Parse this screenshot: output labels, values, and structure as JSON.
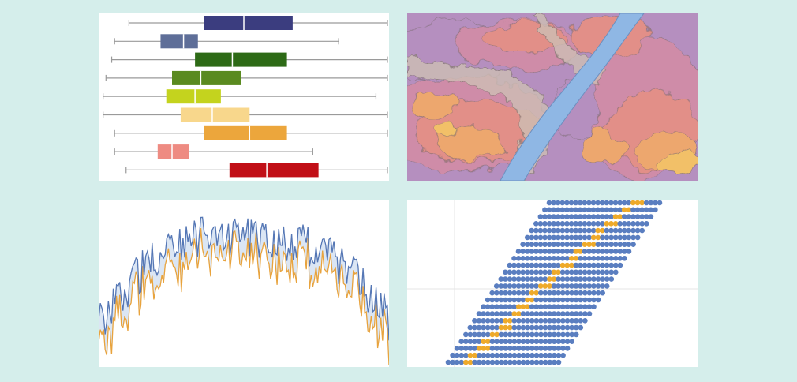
{
  "palette": {
    "background": "#d5eeeb",
    "panel": "#ffffff",
    "whisker": "#9a9a9a",
    "median": "#ffffff",
    "series_primary": "#5577b5",
    "series_secondary": "#e8a33d",
    "band_fill": "#dbe6f4",
    "dot_primary": "#5a7ec0",
    "dot_highlight": "#eeaa2a",
    "grid": "#e4e4e4",
    "map_river": "#8fb7e4"
  },
  "chart_data": [
    {
      "type": "box",
      "xlim": [
        0,
        100
      ],
      "series": [
        {
          "low": 10,
          "q1": 36,
          "median": 50,
          "q3": 67,
          "high": 100,
          "color": "#3b3d7f"
        },
        {
          "low": 5,
          "q1": 21,
          "median": 29,
          "q3": 34,
          "high": 83,
          "color": "#5e6e98"
        },
        {
          "low": 4,
          "q1": 33,
          "median": 46,
          "q3": 65,
          "high": 100,
          "color": "#2d6a16"
        },
        {
          "low": 2,
          "q1": 25,
          "median": 35,
          "q3": 49,
          "high": 100,
          "color": "#5a8a20"
        },
        {
          "low": 1,
          "q1": 23,
          "median": 33,
          "q3": 42,
          "high": 96,
          "color": "#c4d31e"
        },
        {
          "low": 1,
          "q1": 28,
          "median": 39,
          "q3": 52,
          "high": 100,
          "color": "#f8d78c"
        },
        {
          "low": 5,
          "q1": 36,
          "median": 52,
          "q3": 65,
          "high": 100,
          "color": "#eca63c"
        },
        {
          "low": 5,
          "q1": 20,
          "median": 25,
          "q3": 31,
          "high": 74,
          "color": "#ee8b82"
        },
        {
          "low": 9,
          "q1": 45,
          "median": 58,
          "q3": 76,
          "high": 100,
          "color": "#c10f17"
        }
      ]
    },
    {
      "type": "contour-map",
      "levels": [
        {
          "color": "#b58fbf"
        },
        {
          "color": "#cf8ca8"
        },
        {
          "color": "#e28f88"
        },
        {
          "color": "#eda76e"
        },
        {
          "color": "#f2c068"
        }
      ]
    },
    {
      "type": "area",
      "xlim": [
        0,
        180
      ],
      "ylim": [
        0,
        100
      ],
      "series": [
        {
          "color": "#5577b5",
          "trend": "seasonal-high"
        },
        {
          "color": "#e8a33d",
          "trend": "seasonal-low"
        }
      ]
    },
    {
      "type": "scatter",
      "rows": 24,
      "dots_per_row": 26,
      "highlight_columns": [
        4,
        4,
        5,
        5,
        6,
        7,
        7,
        8,
        8,
        9,
        9,
        10,
        11,
        11,
        12,
        13,
        13,
        14,
        15,
        15,
        16,
        17,
        18,
        19
      ]
    }
  ]
}
